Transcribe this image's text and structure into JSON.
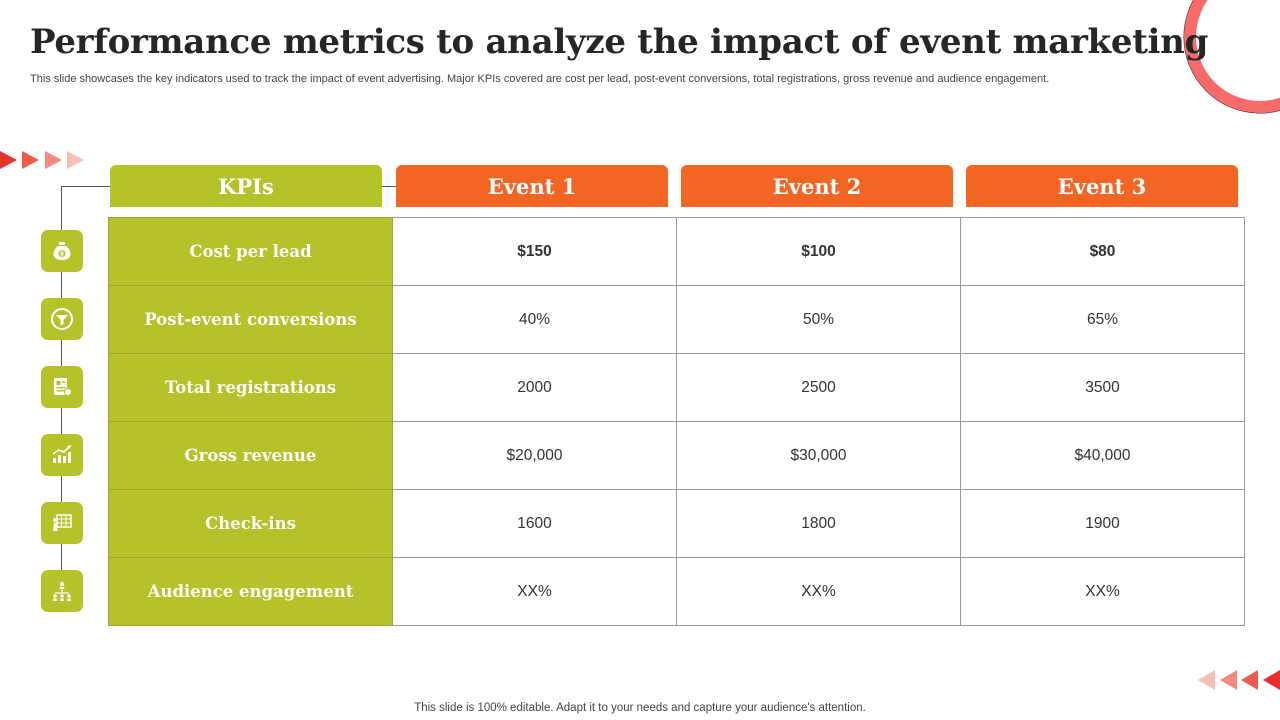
{
  "title": "Performance metrics to analyze the impact of event marketing",
  "subtitle": "This slide showcases the key indicators used to track the impact of event advertising. Major KPIs covered are cost per lead, post-event conversions, total registrations, gross revenue and audience engagement.",
  "footer": "This slide is 100% editable. Adapt it to your needs and capture your audience's attention.",
  "colors": {
    "accent_green": "#b5c22a",
    "accent_orange": "#f26522",
    "ring_red": "#f76b6b"
  },
  "headers": [
    "KPIs",
    "Event 1",
    "Event 2",
    "Event 3"
  ],
  "rows": [
    {
      "kpi": "Cost per lead",
      "icon": "money-bag-icon",
      "values": [
        "$150",
        "$100",
        "$80"
      ]
    },
    {
      "kpi": "Post-event conversions",
      "icon": "funnel-icon",
      "values": [
        "40%",
        "50%",
        "65%"
      ]
    },
    {
      "kpi": "Total registrations",
      "icon": "registration-form-icon",
      "values": [
        "2000",
        "2500",
        "3500"
      ]
    },
    {
      "kpi": "Gross revenue",
      "icon": "revenue-chart-icon",
      "values": [
        "$20,000",
        "$30,000",
        "$40,000"
      ]
    },
    {
      "kpi": "Check-ins",
      "icon": "check-in-icon",
      "values": [
        "1600",
        "1800",
        "1900"
      ]
    },
    {
      "kpi": "Audience engagement",
      "icon": "audience-network-icon",
      "values": [
        "XX%",
        "XX%",
        "XX%"
      ]
    }
  ]
}
